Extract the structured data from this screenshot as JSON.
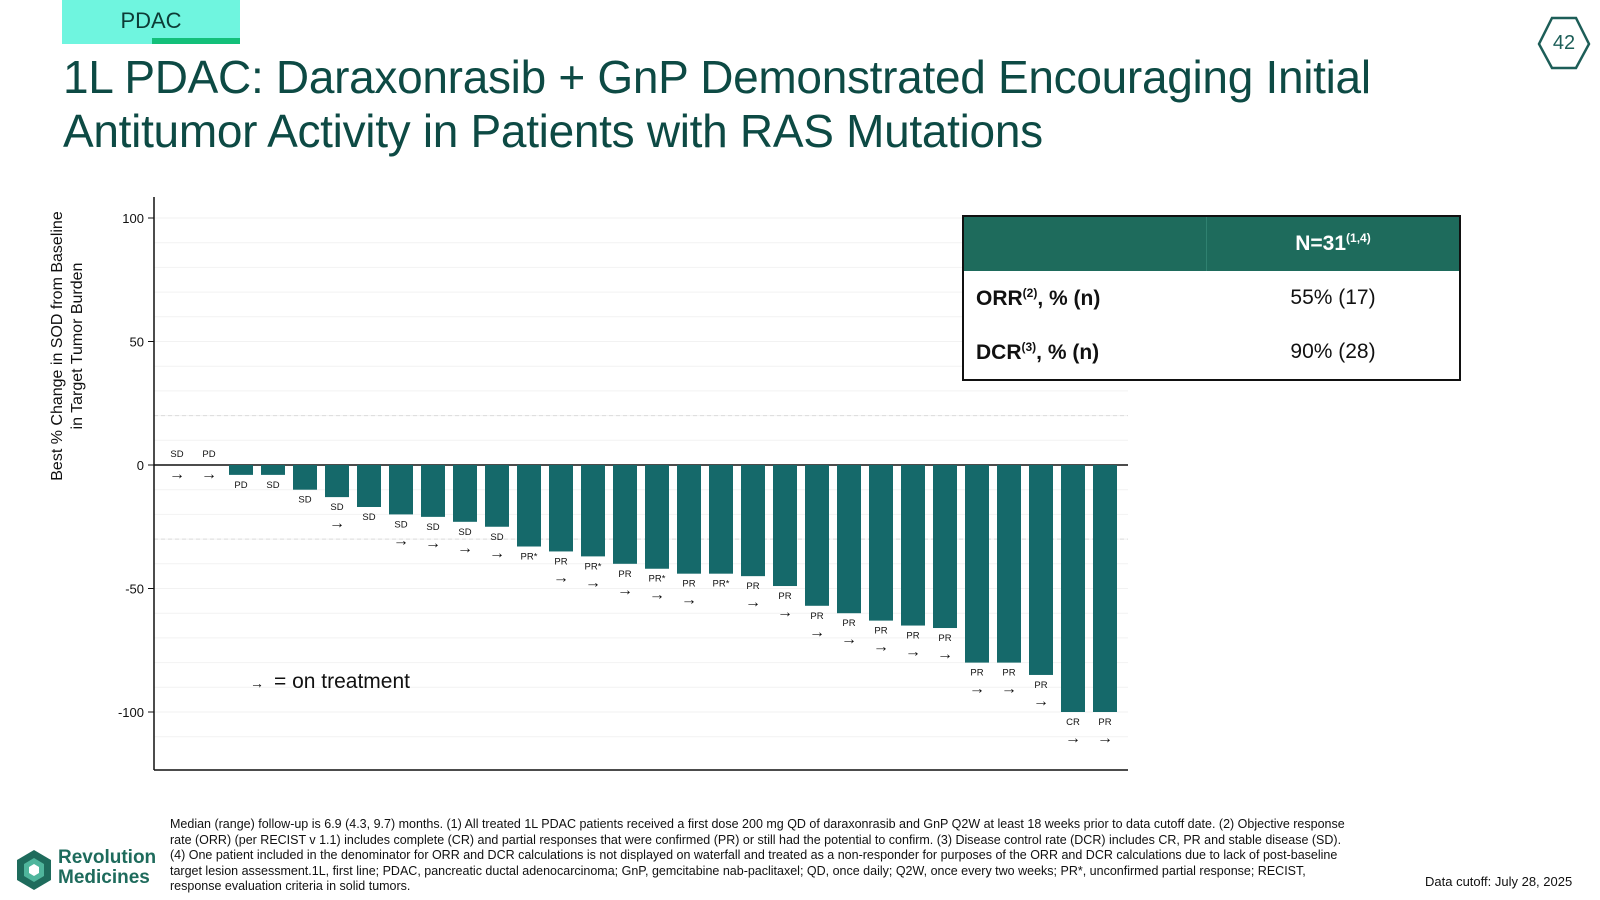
{
  "tag": {
    "label": "PDAC"
  },
  "page_number": "42",
  "title": {
    "line1": "1L PDAC: Daraxonrasib + GnP Demonstrated Encouraging Initial",
    "line2": "Antitumor Activity in Patients with RAS Mutations"
  },
  "colors": {
    "bar": "#15696a",
    "table_header": "#1e6b5c",
    "title": "#0d4a44",
    "tag_bg": "#6ff5df",
    "tag_accent": "#13c07a"
  },
  "chart_data": {
    "type": "bar",
    "title": "",
    "xlabel": "",
    "ylabel_line1": "Best % Change in SOD from Baseline",
    "ylabel_line2": "in Target Tumor Burden",
    "ylim": [
      -120,
      108
    ],
    "yticks": [
      100,
      50,
      0,
      -50,
      -100
    ],
    "reference_lines": [
      20,
      -30
    ],
    "grid": true,
    "values": [
      0,
      0,
      -4,
      -4,
      -10,
      -13,
      -17,
      -20,
      -21,
      -23,
      -25,
      -33,
      -35,
      -37,
      -40,
      -42,
      -44,
      -44,
      -45,
      -49,
      -57,
      -60,
      -63,
      -65,
      -66,
      -80,
      -80,
      -85,
      -100,
      -100
    ],
    "labels": [
      "SD",
      "PD",
      "PD",
      "SD",
      "SD",
      "SD",
      "SD",
      "SD",
      "SD",
      "SD",
      "SD",
      "PR*",
      "PR",
      "PR*",
      "PR",
      "PR*",
      "PR",
      "PR*",
      "PR",
      "PR",
      "PR",
      "PR",
      "PR",
      "PR",
      "PR",
      "PR",
      "PR",
      "PR",
      "CR",
      "PR"
    ],
    "on_treatment": [
      true,
      true,
      false,
      false,
      false,
      true,
      false,
      true,
      true,
      true,
      true,
      false,
      true,
      true,
      true,
      true,
      true,
      false,
      true,
      true,
      true,
      true,
      true,
      true,
      true,
      true,
      true,
      true,
      true,
      true
    ],
    "arrow_symbol": "→",
    "legend": "= on treatment"
  },
  "table": {
    "header_n": "N=31",
    "header_n_sup": "(1,4)",
    "rows": [
      {
        "label": "ORR",
        "sup": "(2)",
        "suffix": ", % (n)",
        "value": "55% (17)"
      },
      {
        "label": "DCR",
        "sup": "(3)",
        "suffix": ", % (n)",
        "value": "90% (28)"
      }
    ]
  },
  "footnote": "Median (range) follow-up is 6.9 (4.3, 9.7) months. (1) All treated 1L PDAC patients received a first dose 200 mg QD of daraxonrasib and GnP Q2W at least 18 weeks prior to data cutoff date. (2) Objective response rate (ORR) (per RECIST v 1.1) includes complete (CR) and partial responses that were confirmed (PR) or still had the potential to confirm. (3) Disease control rate (DCR) includes CR, PR and stable disease (SD). (4) One patient included in the denominator for ORR and DCR calculations is not displayed on waterfall and treated as a non-responder for purposes of the ORR and DCR calculations due to lack of post-baseline target lesion assessment.1L, first line; PDAC, pancreatic ductal adenocarcinoma; GnP, gemcitabine nab-paclitaxel; QD, once daily; Q2W, once every two weeks; PR*, unconfirmed partial response; RECIST, response evaluation criteria in solid tumors.",
  "data_cutoff": "Data cutoff: July 28, 2025",
  "logo": {
    "line1": "Revolution",
    "line2": "Medicines",
    "icon": "hexagon-logo-icon"
  }
}
